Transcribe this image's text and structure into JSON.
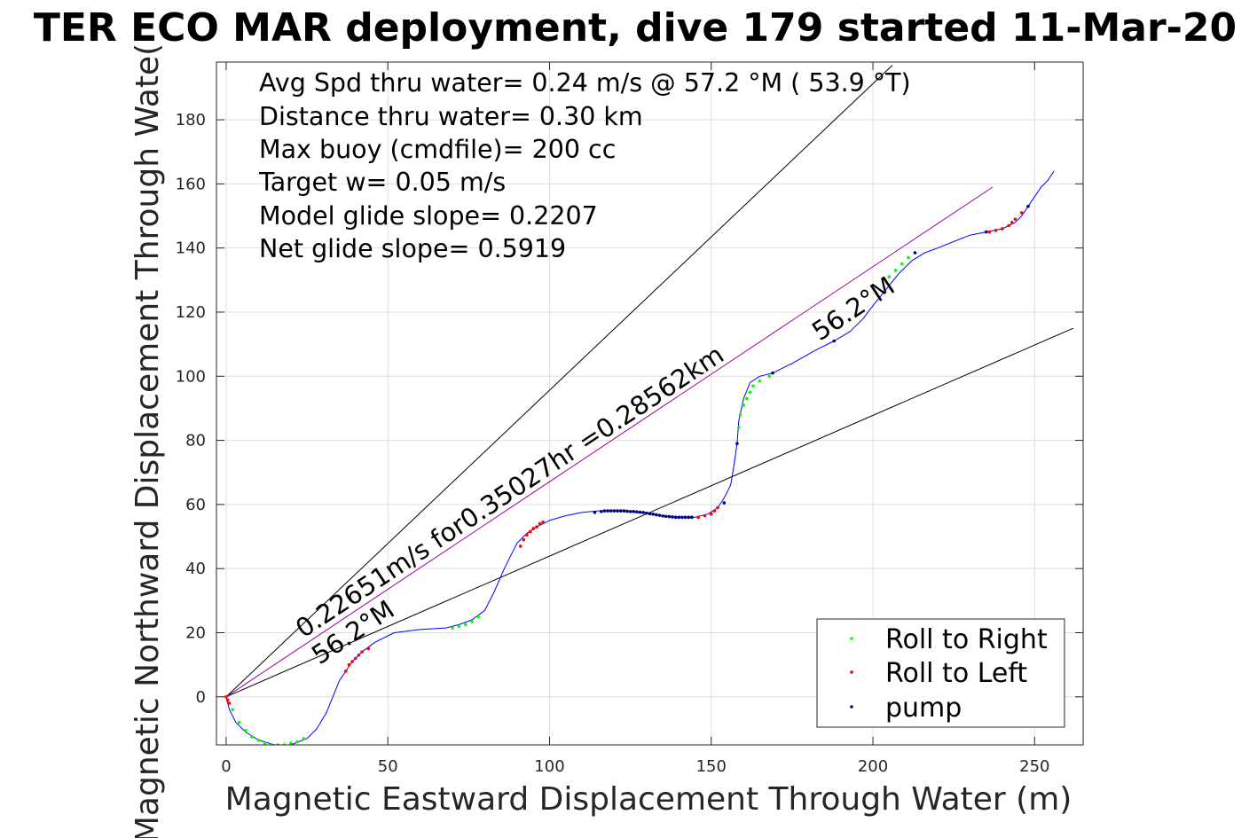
{
  "chart_data": {
    "type": "scatter",
    "title": "TER ECO MAR deployment, dive 179 started 11-Mar-20",
    "xlabel": "Magnetic Eastward Displacement Through Water (m)",
    "ylabel": "Magnetic Northward Displacement Through Wate(",
    "xlim": [
      -3,
      265
    ],
    "ylim": [
      -15,
      198
    ],
    "xticks": [
      0,
      50,
      100,
      150,
      200,
      250
    ],
    "yticks": [
      0,
      20,
      40,
      60,
      80,
      100,
      120,
      140,
      160,
      180
    ],
    "grid": true,
    "legend_position": "bottom-right",
    "annotations": [
      "Avg Spd thru water=  0.24 m/s @  57.2 °M ( 53.9 °T)",
      "Distance thru water=  0.30 km",
      "Max buoy (cmdfile)= 200 cc",
      "Target w= 0.05 m/s",
      "Model glide slope= 0.2207",
      "Net glide slope= 0.5919"
    ],
    "plot_labels": {
      "vector": "0.22651m/s for0.35027hr =0.28562km",
      "heading_lower": "56.2°M",
      "heading_upper": "56.2°M"
    },
    "lines": [
      {
        "name": "cone-upper",
        "color": "#000000",
        "x": [
          0,
          206
        ],
        "y": [
          0,
          197
        ]
      },
      {
        "name": "cone-lower",
        "color": "#000000",
        "x": [
          0,
          262
        ],
        "y": [
          0,
          115
        ]
      },
      {
        "name": "net-vector",
        "color": "#a000a0",
        "x": [
          0,
          237
        ],
        "y": [
          0,
          159
        ]
      }
    ],
    "track": {
      "color": "#0000ff",
      "x": [
        0,
        1,
        3,
        6,
        10,
        15,
        20,
        25,
        28,
        31,
        33,
        35,
        37,
        39,
        42,
        46,
        52,
        60,
        68,
        72,
        76,
        80,
        83,
        86,
        88,
        90,
        93,
        96,
        100,
        105,
        110,
        115,
        120,
        125,
        130,
        135,
        140,
        145,
        149,
        152,
        154,
        156,
        157,
        158,
        158.5,
        160,
        162,
        165,
        169,
        175,
        182,
        188,
        193,
        197,
        200,
        204,
        208,
        212,
        216,
        220,
        225,
        230,
        235,
        240,
        244,
        246,
        248,
        250,
        252,
        254,
        256
      ],
      "y": [
        0,
        -4,
        -8,
        -11,
        -13.5,
        -15,
        -15,
        -13,
        -10,
        -5,
        0,
        5,
        8,
        11,
        14,
        17,
        20,
        21,
        21.5,
        22.5,
        24,
        27,
        33,
        40,
        44,
        48,
        51,
        53,
        55,
        56.5,
        57.5,
        58,
        58,
        57.7,
        57.2,
        56.5,
        56,
        56,
        57,
        59,
        62,
        66,
        72,
        79,
        86,
        93,
        98,
        100,
        101,
        104,
        108,
        111,
        114,
        118,
        122,
        127,
        132,
        136,
        138.5,
        140,
        142,
        144,
        145,
        146,
        148,
        150,
        153,
        156,
        159,
        161,
        164
      ]
    },
    "series": [
      {
        "name": "Roll to Right",
        "color": "#00ff00",
        "x": [
          2,
          4,
          6,
          8,
          10,
          12,
          14,
          16,
          18,
          20,
          22,
          24,
          70,
          72,
          74,
          76,
          78,
          158.5,
          159,
          160,
          161,
          162,
          163,
          165,
          168,
          205,
          207,
          209,
          211
        ],
        "y": [
          -4,
          -8,
          -10.5,
          -12.5,
          -13.5,
          -14.5,
          -15,
          -15,
          -15,
          -14.5,
          -14,
          -13,
          21.5,
          22,
          22.5,
          23.5,
          25,
          84,
          88,
          91,
          93,
          95,
          97,
          98.5,
          100,
          131,
          133,
          135,
          137
        ]
      },
      {
        "name": "Roll to Left",
        "color": "#ff0000",
        "x": [
          0,
          0.5,
          1,
          37,
          38,
          39,
          40,
          41,
          42,
          44,
          91,
          92,
          93,
          94,
          95,
          96,
          97,
          98,
          146,
          148,
          150,
          151,
          152,
          236,
          238,
          240,
          242,
          243,
          244,
          246
        ],
        "y": [
          0,
          -1,
          -2,
          8,
          10,
          11,
          12,
          13,
          14,
          15,
          47,
          49,
          50.5,
          51.5,
          52.5,
          53,
          54,
          54.5,
          56,
          56.5,
          57,
          58,
          59,
          145,
          145.5,
          146,
          147,
          148,
          149,
          151
        ]
      },
      {
        "name": "pump",
        "color": "#000080",
        "x": [
          114,
          116,
          117,
          118,
          119,
          120,
          121,
          122,
          123,
          124,
          125,
          126,
          127,
          128,
          129,
          130,
          131,
          132,
          133,
          134,
          135,
          136,
          137,
          138,
          139,
          140,
          141,
          142,
          143,
          144,
          154,
          158,
          169,
          188,
          213,
          235,
          248
        ],
        "y": [
          57.5,
          57.8,
          58,
          58,
          58,
          58,
          58,
          58,
          58,
          57.9,
          57.8,
          57.8,
          57.7,
          57.6,
          57.5,
          57.3,
          57.1,
          57,
          56.8,
          56.6,
          56.4,
          56.3,
          56.2,
          56.1,
          56,
          56,
          56,
          56,
          56,
          56,
          60.5,
          79,
          101,
          111,
          138.5,
          145,
          153
        ]
      }
    ]
  }
}
